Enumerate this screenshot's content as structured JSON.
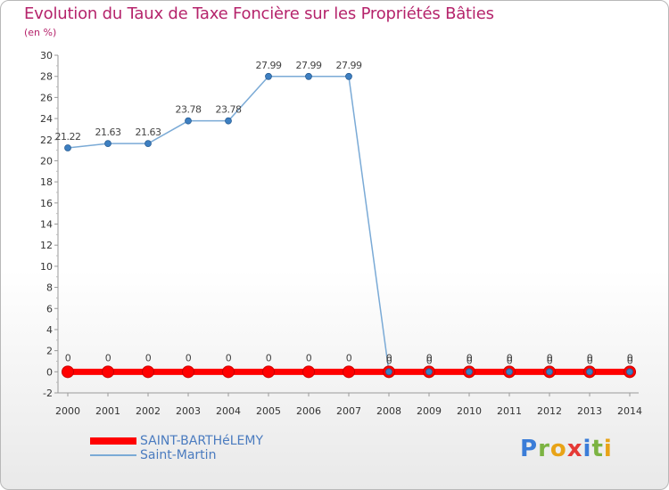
{
  "chart_data": {
    "type": "line",
    "title": "Evolution du Taux de Taxe Foncière sur les Propriétés Bâties",
    "subtitle": "(en %)",
    "xlabel": "",
    "ylabel": "",
    "categories": [
      "2000",
      "2001",
      "2002",
      "2003",
      "2004",
      "2005",
      "2006",
      "2007",
      "2008",
      "2009",
      "2010",
      "2011",
      "2012",
      "2013",
      "2014"
    ],
    "ylim": [
      -2,
      30
    ],
    "yticks": [
      -2,
      0,
      2,
      4,
      6,
      8,
      10,
      12,
      14,
      16,
      18,
      20,
      22,
      24,
      26,
      28,
      30
    ],
    "grid": false,
    "legend_position": "bottom-left",
    "series": [
      {
        "name": "SAINT-BARTHéLEMY",
        "color": "#ff0000",
        "values": [
          0,
          0,
          0,
          0,
          0,
          0,
          0,
          0,
          0,
          0,
          0,
          0,
          0,
          0,
          0
        ],
        "labels": [
          "0",
          "0",
          "0",
          "0",
          "0",
          "0",
          "0",
          "0",
          "0",
          "0",
          "0",
          "0",
          "0",
          "0",
          "0"
        ]
      },
      {
        "name": "Saint-Martin",
        "color": "#7aaad6",
        "values": [
          21.22,
          21.63,
          21.63,
          23.78,
          23.78,
          27.99,
          27.99,
          27.99,
          0,
          0,
          0,
          0,
          0,
          0,
          0
        ],
        "labels": [
          "21.22",
          "21.63",
          "21.63",
          "23.78",
          "23.78",
          "27.99",
          "27.99",
          "27.99",
          "0",
          "0",
          "0",
          "0",
          "0",
          "0",
          "0"
        ]
      }
    ]
  },
  "logo": {
    "letters": [
      {
        "char": "P",
        "color": "#3b7dd8"
      },
      {
        "char": "r",
        "color": "#7cb342"
      },
      {
        "char": "o",
        "color": "#e8a317"
      },
      {
        "char": "x",
        "color": "#e53935"
      },
      {
        "char": "i",
        "color": "#3b7dd8"
      },
      {
        "char": "t",
        "color": "#7cb342"
      },
      {
        "char": "i",
        "color": "#e8a317"
      }
    ]
  }
}
